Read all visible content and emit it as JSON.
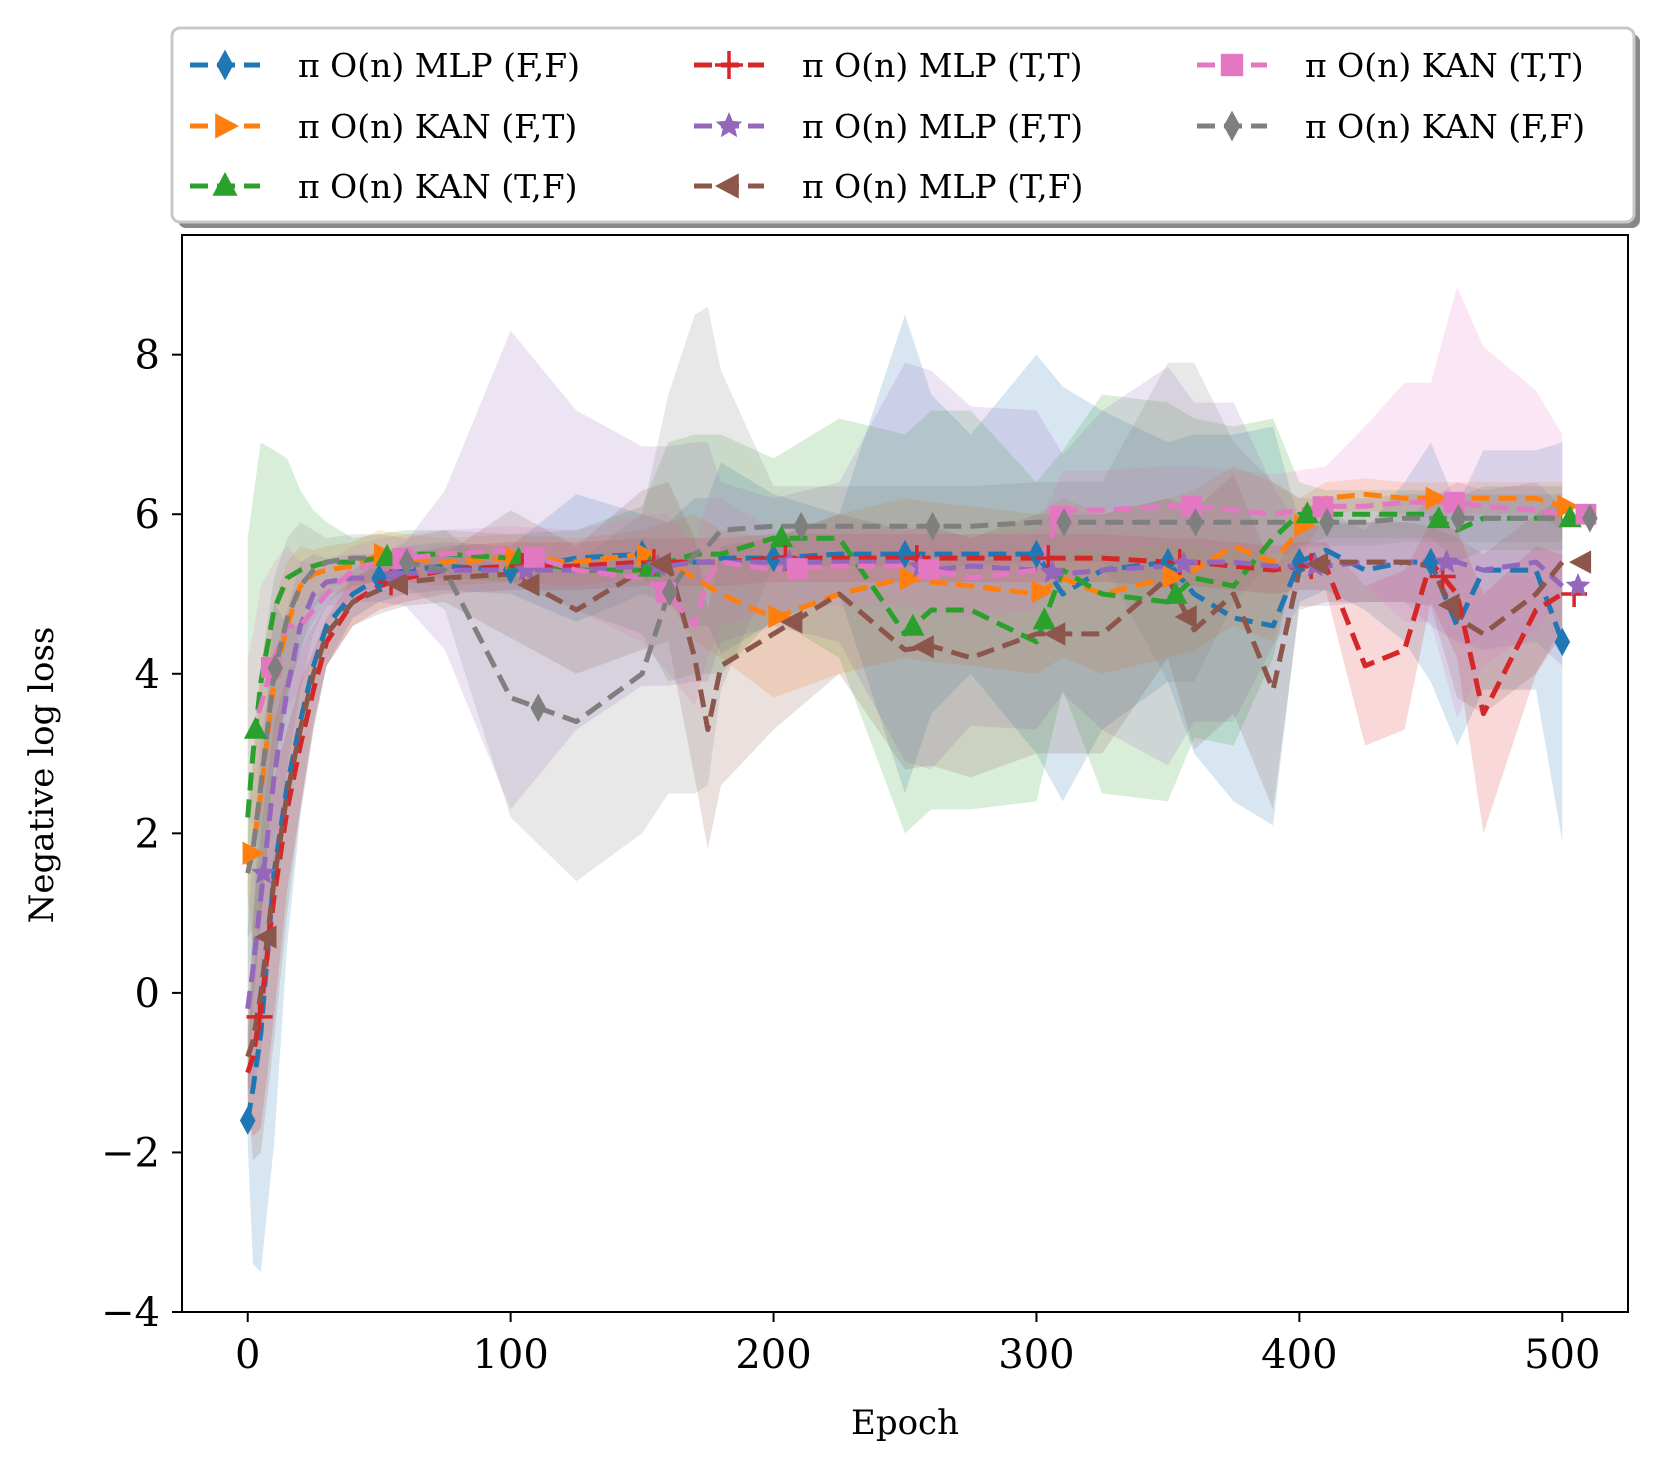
{
  "chart_data": {
    "type": "line",
    "xlabel": "Epoch",
    "ylabel": "Negative log loss",
    "xlim": [
      -25,
      525
    ],
    "ylim": [
      -4,
      9.5
    ],
    "xticks": [
      0,
      100,
      200,
      300,
      400,
      500
    ],
    "xtick_labels": [
      "0",
      "100",
      "200",
      "300",
      "400",
      "500"
    ],
    "yticks": [
      -4,
      -2,
      0,
      2,
      4,
      6,
      8
    ],
    "ytick_labels": [
      "−4",
      "−2",
      "0",
      "2",
      "4",
      "6",
      "8"
    ],
    "grid": false,
    "legend_position": "top",
    "x": [
      0,
      2,
      5,
      10,
      15,
      20,
      25,
      30,
      40,
      50,
      60,
      75,
      100,
      125,
      150,
      160,
      170,
      175,
      180,
      200,
      225,
      250,
      260,
      275,
      300,
      310,
      325,
      350,
      360,
      375,
      390,
      400,
      410,
      425,
      440,
      450,
      460,
      470,
      490,
      500
    ],
    "series": [
      {
        "name": "π O(n) MLP (F,F)",
        "color": "#1f77b4",
        "marker": "thin_diamond",
        "values": [
          -1.6,
          -1.2,
          -0.5,
          1.5,
          2.6,
          3.4,
          4.1,
          4.6,
          5.0,
          5.2,
          5.3,
          5.35,
          5.3,
          5.45,
          5.5,
          5.4,
          5.4,
          5.4,
          5.45,
          5.45,
          5.5,
          5.5,
          5.5,
          5.5,
          5.5,
          5.0,
          5.3,
          5.4,
          5.0,
          4.7,
          4.6,
          5.4,
          5.55,
          5.3,
          5.4,
          5.4,
          4.6,
          5.3,
          5.3,
          4.4
        ]
      },
      {
        "name": "π O(n) KAN (F,T)",
        "color": "#ff7f0e",
        "marker": "triangle_right",
        "values": [
          1.6,
          1.8,
          2.5,
          3.9,
          4.6,
          5.1,
          5.25,
          5.3,
          5.35,
          5.5,
          5.45,
          5.4,
          5.45,
          5.4,
          5.5,
          5.4,
          5.2,
          5.1,
          5.0,
          4.7,
          5.0,
          5.2,
          5.15,
          5.1,
          5.0,
          5.2,
          5.0,
          5.2,
          5.3,
          5.6,
          5.4,
          5.8,
          6.2,
          6.25,
          6.2,
          6.2,
          6.2,
          6.2,
          6.2,
          6.1
        ]
      },
      {
        "name": "π O(n) KAN (T,F)",
        "color": "#2ca02c",
        "marker": "triangle_up",
        "values": [
          2.2,
          3.0,
          3.9,
          4.8,
          5.2,
          5.3,
          5.35,
          5.4,
          5.4,
          5.45,
          5.5,
          5.5,
          5.45,
          5.3,
          5.3,
          5.4,
          5.5,
          5.5,
          5.5,
          5.7,
          5.7,
          4.5,
          4.8,
          4.8,
          4.4,
          5.3,
          5.0,
          4.9,
          5.2,
          5.1,
          5.7,
          6.0,
          6.0,
          6.0,
          6.0,
          6.0,
          5.8,
          5.95,
          5.95,
          5.95
        ]
      },
      {
        "name": "π O(n) MLP (T,T)",
        "color": "#d62728",
        "marker": "plus",
        "values": [
          -1.0,
          -0.8,
          -0.2,
          1.2,
          2.3,
          3.1,
          3.8,
          4.4,
          4.9,
          5.1,
          5.2,
          5.3,
          5.35,
          5.35,
          5.4,
          5.4,
          5.4,
          5.4,
          5.4,
          5.45,
          5.45,
          5.45,
          5.45,
          5.45,
          5.45,
          5.45,
          5.45,
          5.4,
          5.4,
          5.35,
          5.3,
          5.35,
          5.35,
          4.1,
          4.3,
          5.4,
          5.0,
          3.5,
          4.8,
          5.0
        ]
      },
      {
        "name": "π O(n) MLP (F,T)",
        "color": "#9467bd",
        "marker": "star",
        "values": [
          -0.2,
          0.3,
          1.2,
          2.7,
          3.8,
          4.6,
          5.0,
          5.15,
          5.2,
          5.2,
          5.25,
          5.3,
          5.3,
          5.3,
          5.35,
          5.35,
          5.4,
          5.4,
          5.4,
          5.4,
          5.4,
          5.4,
          5.3,
          5.35,
          5.3,
          5.25,
          5.3,
          5.35,
          5.4,
          5.4,
          5.35,
          5.35,
          5.35,
          5.4,
          5.4,
          5.4,
          5.4,
          5.3,
          5.4,
          5.1
        ]
      },
      {
        "name": "π O(n) MLP (T,F)",
        "color": "#8c564b",
        "marker": "triangle_left",
        "values": [
          -0.8,
          -0.6,
          0.0,
          1.4,
          2.5,
          3.3,
          4.0,
          4.5,
          4.9,
          5.05,
          5.15,
          5.2,
          5.25,
          4.8,
          5.3,
          5.4,
          4.2,
          3.3,
          4.1,
          4.5,
          5.0,
          4.3,
          4.35,
          4.2,
          4.5,
          4.5,
          4.5,
          5.2,
          4.55,
          5.0,
          3.8,
          5.3,
          5.4,
          5.4,
          5.4,
          5.35,
          4.7,
          4.5,
          5.0,
          5.4
        ]
      },
      {
        "name": "π O(n) KAN (T,T)",
        "color": "#e377c2",
        "marker": "square",
        "values": [
          3.2,
          3.3,
          3.6,
          4.2,
          4.6,
          4.6,
          4.8,
          5.0,
          5.3,
          5.4,
          5.45,
          5.5,
          5.55,
          5.3,
          5.2,
          5.0,
          4.6,
          5.2,
          5.4,
          5.3,
          5.35,
          5.35,
          5.3,
          5.2,
          5.3,
          6.05,
          6.05,
          6.1,
          6.1,
          6.05,
          6.0,
          6.05,
          6.1,
          6.1,
          6.15,
          6.15,
          6.15,
          6.1,
          6.05,
          6.0
        ]
      },
      {
        "name": "π O(n) KAN (F,F)",
        "color": "#7f7f7f",
        "marker": "thin_diamond",
        "values": [
          1.5,
          1.8,
          2.6,
          4.0,
          4.7,
          5.1,
          5.3,
          5.4,
          5.45,
          5.45,
          5.4,
          5.3,
          3.7,
          3.4,
          4.0,
          5.0,
          5.5,
          5.6,
          5.8,
          5.85,
          5.85,
          5.85,
          5.85,
          5.85,
          5.9,
          5.9,
          5.9,
          5.9,
          5.9,
          5.9,
          5.9,
          5.9,
          5.9,
          5.9,
          5.95,
          5.95,
          5.95,
          5.95,
          5.95,
          5.95
        ]
      }
    ],
    "band_halfwidth": [
      [
        0.3,
        2.2,
        3.0,
        3.4,
        2.0,
        1.2,
        0.8,
        0.5,
        0.3,
        0.3,
        0.3,
        0.3,
        0.3,
        0.8,
        0.5,
        0.5,
        0.8,
        0.8,
        1.2,
        0.8,
        0.5,
        3.0,
        2.0,
        1.5,
        2.5,
        2.6,
        2.0,
        1.5,
        2.0,
        2.3,
        2.5,
        0.5,
        0.5,
        0.5,
        1.0,
        1.5,
        1.5,
        1.5,
        1.5,
        2.5
      ],
      [
        0.4,
        1.2,
        1.6,
        1.0,
        0.8,
        0.5,
        0.3,
        0.3,
        0.3,
        0.3,
        0.3,
        0.3,
        0.3,
        0.3,
        0.3,
        0.5,
        0.8,
        0.8,
        0.8,
        1.0,
        1.0,
        1.0,
        1.0,
        1.0,
        1.0,
        1.0,
        1.0,
        1.0,
        1.0,
        1.0,
        1.0,
        0.4,
        0.2,
        0.2,
        0.2,
        0.2,
        0.2,
        0.2,
        0.2,
        0.3
      ],
      [
        3.5,
        3.2,
        3.0,
        2.0,
        1.5,
        1.0,
        0.7,
        0.5,
        0.3,
        0.3,
        0.3,
        0.3,
        0.3,
        0.5,
        0.8,
        1.5,
        1.5,
        1.5,
        1.5,
        1.0,
        1.5,
        2.5,
        2.5,
        2.5,
        2.0,
        1.5,
        2.5,
        2.5,
        2.0,
        2.0,
        1.5,
        0.4,
        0.3,
        0.3,
        0.3,
        0.3,
        0.4,
        0.4,
        0.4,
        0.4
      ],
      [
        0.5,
        1.0,
        1.5,
        1.5,
        1.0,
        0.8,
        0.5,
        0.3,
        0.3,
        0.3,
        0.3,
        0.3,
        0.3,
        0.3,
        0.3,
        0.3,
        0.3,
        0.3,
        0.3,
        0.3,
        0.3,
        0.3,
        0.3,
        0.3,
        0.3,
        0.3,
        0.3,
        0.3,
        0.3,
        0.3,
        0.3,
        0.3,
        0.3,
        1.0,
        1.0,
        0.5,
        0.8,
        1.5,
        0.8,
        0.5
      ],
      [
        1.0,
        1.5,
        2.0,
        1.5,
        1.0,
        0.8,
        0.5,
        0.3,
        0.3,
        0.3,
        0.4,
        1.0,
        3.0,
        2.0,
        1.5,
        1.5,
        1.5,
        1.5,
        1.0,
        0.8,
        1.0,
        2.5,
        2.5,
        2.0,
        2.0,
        1.5,
        2.0,
        2.5,
        2.0,
        2.0,
        1.0,
        0.5,
        0.5,
        0.5,
        0.5,
        0.8,
        1.0,
        1.0,
        1.0,
        1.0
      ],
      [
        0.5,
        1.5,
        2.0,
        2.0,
        1.5,
        1.0,
        0.6,
        0.4,
        0.3,
        0.3,
        0.3,
        0.3,
        0.8,
        0.8,
        1.0,
        1.0,
        1.5,
        1.5,
        1.5,
        1.2,
        1.0,
        1.5,
        1.5,
        1.5,
        1.5,
        1.5,
        1.5,
        1.0,
        1.5,
        1.5,
        1.5,
        0.5,
        0.5,
        0.5,
        0.5,
        0.5,
        1.0,
        1.0,
        1.0,
        0.8
      ],
      [
        1.0,
        1.2,
        1.5,
        1.2,
        1.0,
        0.8,
        0.6,
        0.4,
        0.3,
        0.3,
        0.3,
        0.3,
        0.3,
        0.5,
        0.8,
        1.0,
        1.0,
        1.0,
        0.8,
        0.5,
        0.5,
        0.5,
        0.5,
        0.5,
        0.5,
        0.5,
        0.5,
        0.5,
        0.5,
        0.5,
        0.5,
        0.5,
        0.5,
        1.0,
        1.5,
        1.5,
        2.7,
        2.0,
        1.5,
        1.0
      ],
      [
        0.8,
        1.0,
        1.5,
        1.2,
        1.0,
        0.8,
        0.5,
        0.3,
        0.3,
        0.3,
        0.3,
        0.5,
        1.5,
        2.0,
        2.0,
        2.5,
        3.0,
        3.0,
        2.0,
        0.5,
        0.5,
        0.5,
        0.5,
        0.5,
        0.5,
        0.5,
        0.5,
        2.0,
        2.0,
        1.0,
        0.5,
        0.3,
        0.3,
        0.3,
        0.3,
        0.3,
        0.3,
        0.3,
        0.3,
        0.3
      ]
    ]
  }
}
